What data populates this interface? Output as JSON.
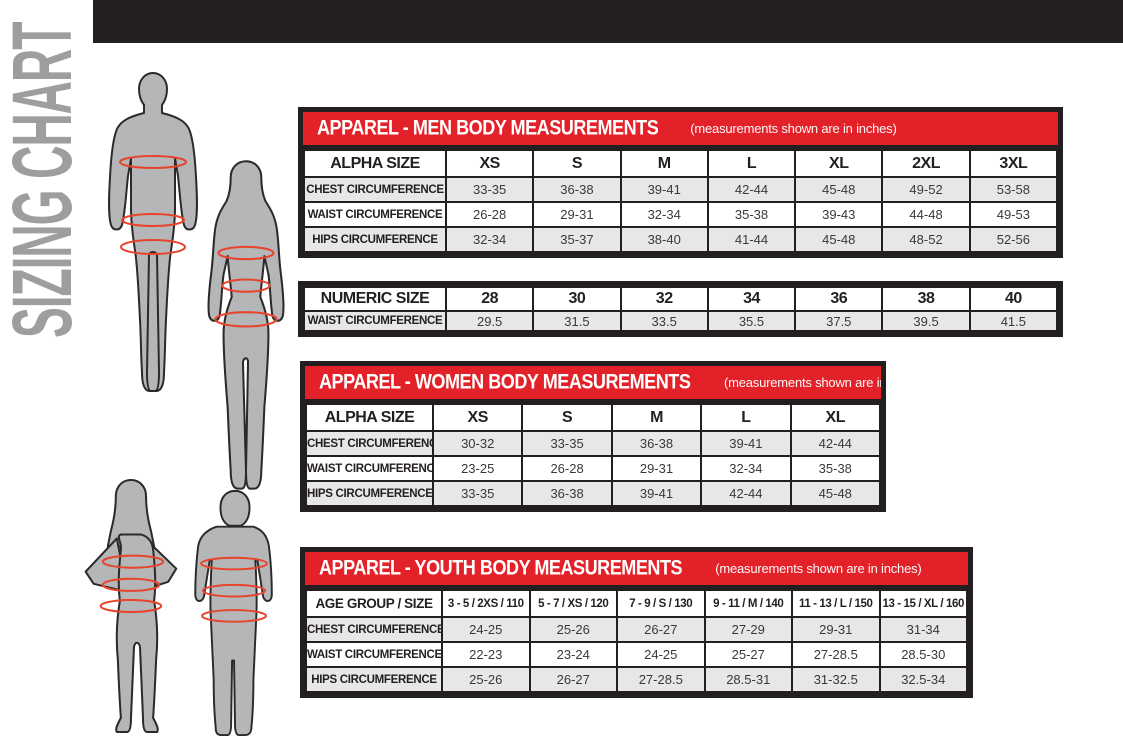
{
  "page": {
    "vertical_title": "SIZING CHART"
  },
  "colors": {
    "accent_red": "#e32128",
    "bar_black": "#231f20",
    "row_gray": "#e7e7e7",
    "silhouette_gray": "#b5b6b8",
    "measure_line_red": "#e8442c",
    "vertical_title_gray": "#9c9ea0"
  },
  "icons": {
    "man_figure": "man-silhouette",
    "woman_figure": "woman-silhouette",
    "girl_figure": "girl-silhouette",
    "boy_figure": "boy-silhouette",
    "measure_marks": "measurement-ellipse"
  },
  "tables": {
    "men": {
      "title": "APPAREL - MEN BODY MEASUREMENTS",
      "subtitle": "(measurements shown are in inches)",
      "header": [
        "ALPHA SIZE",
        "XS",
        "S",
        "M",
        "L",
        "XL",
        "2XL",
        "3XL"
      ],
      "rows": [
        [
          "CHEST CIRCUMFERENCE",
          "33-35",
          "36-38",
          "39-41",
          "42-44",
          "45-48",
          "49-52",
          "53-58"
        ],
        [
          "WAIST CIRCUMFERENCE",
          "26-28",
          "29-31",
          "32-34",
          "35-38",
          "39-43",
          "44-48",
          "49-53"
        ],
        [
          "HIPS CIRCUMFERENCE",
          "32-34",
          "35-37",
          "38-40",
          "41-44",
          "45-48",
          "48-52",
          "52-56"
        ]
      ]
    },
    "numeric": {
      "header": [
        "NUMERIC SIZE",
        "28",
        "30",
        "32",
        "34",
        "36",
        "38",
        "40"
      ],
      "rows": [
        [
          "WAIST CIRCUMFERENCE",
          "29.5",
          "31.5",
          "33.5",
          "35.5",
          "37.5",
          "39.5",
          "41.5"
        ]
      ]
    },
    "women": {
      "title": "APPAREL - WOMEN BODY MEASUREMENTS",
      "subtitle": "(measurements shown are in inches)",
      "header": [
        "ALPHA SIZE",
        "XS",
        "S",
        "M",
        "L",
        "XL"
      ],
      "rows": [
        [
          "CHEST CIRCUMFERENCE",
          "30-32",
          "33-35",
          "36-38",
          "39-41",
          "42-44"
        ],
        [
          "WAIST CIRCUMFERENCE",
          "23-25",
          "26-28",
          "29-31",
          "32-34",
          "35-38"
        ],
        [
          "HIPS CIRCUMFERENCE",
          "33-35",
          "36-38",
          "39-41",
          "42-44",
          "45-48"
        ]
      ]
    },
    "youth": {
      "title": "APPAREL - YOUTH BODY MEASUREMENTS",
      "subtitle": "(measurements shown are in inches)",
      "header": [
        "AGE GROUP / SIZE",
        "3 - 5 / 2XS / 110",
        "5 - 7 / XS / 120",
        "7 - 9 / S / 130",
        "9 - 11 / M / 140",
        "11 - 13 / L / 150",
        "13 - 15 / XL / 160"
      ],
      "rows": [
        [
          "CHEST CIRCUMFERENCE",
          "24-25",
          "25-26",
          "26-27",
          "27-29",
          "29-31",
          "31-34"
        ],
        [
          "WAIST CIRCUMFERENCE",
          "22-23",
          "23-24",
          "24-25",
          "25-27",
          "27-28.5",
          "28.5-30"
        ],
        [
          "HIPS CIRCUMFERENCE",
          "25-26",
          "26-27",
          "27-28.5",
          "28.5-31",
          "31-32.5",
          "32.5-34"
        ]
      ]
    }
  }
}
